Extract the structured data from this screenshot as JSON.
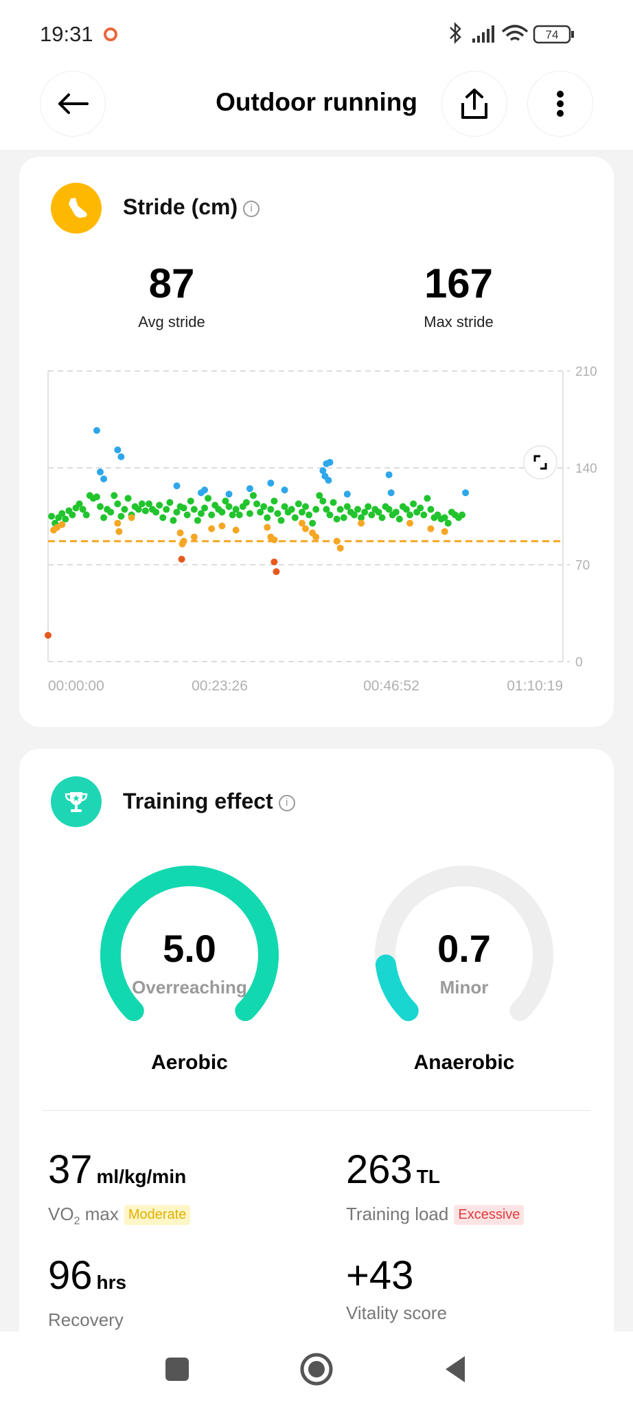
{
  "status_bar": {
    "time": "19:31",
    "battery": "74"
  },
  "header": {
    "title": "Outdoor running"
  },
  "stride": {
    "title": "Stride (cm)",
    "avg_value": "87",
    "avg_label": "Avg stride",
    "max_value": "167",
    "max_label": "Max stride"
  },
  "chart_data": {
    "type": "scatter",
    "title": "",
    "xlabel": "",
    "ylabel": "",
    "ylim": [
      0,
      210
    ],
    "yticks": [
      "210",
      "140",
      "70",
      "0"
    ],
    "xticks": [
      "00:00:00",
      "00:23:26",
      "00:46:52",
      "01:10:19"
    ],
    "x_range_min": [
      0,
      74
    ],
    "avg_line": 87,
    "grid": true,
    "colors": {
      "blue": "#2ea6ea",
      "green": "#22c42e",
      "orange": "#f5a623",
      "red": "#e45a1e",
      "avg_line": "#f5a623"
    },
    "series": [
      {
        "color": "blue",
        "points": [
          [
            7,
            167
          ],
          [
            7.5,
            137
          ],
          [
            8,
            132
          ],
          [
            10,
            153
          ],
          [
            10.5,
            148
          ],
          [
            18.5,
            127
          ],
          [
            22,
            122
          ],
          [
            22.5,
            124
          ],
          [
            26,
            121
          ],
          [
            29,
            125
          ],
          [
            32,
            129
          ],
          [
            34,
            124
          ],
          [
            39.5,
            138
          ],
          [
            40,
            143
          ],
          [
            40.5,
            144
          ],
          [
            39.8,
            134
          ],
          [
            40.3,
            131
          ],
          [
            43,
            121
          ],
          [
            49,
            135
          ],
          [
            49.3,
            122
          ],
          [
            60,
            122
          ]
        ]
      },
      {
        "color": "green",
        "points": [
          [
            0.5,
            105
          ],
          [
            1,
            100
          ],
          [
            1.5,
            104
          ],
          [
            2,
            107
          ],
          [
            2.5,
            103
          ],
          [
            3,
            109
          ],
          [
            3.5,
            106
          ],
          [
            4,
            111
          ],
          [
            4.5,
            114
          ],
          [
            5,
            110
          ],
          [
            5.5,
            106
          ],
          [
            6,
            120
          ],
          [
            6.5,
            118
          ],
          [
            7,
            119
          ],
          [
            7.5,
            112
          ],
          [
            8,
            104
          ],
          [
            8.5,
            110
          ],
          [
            9,
            108
          ],
          [
            9.5,
            120
          ],
          [
            10,
            114
          ],
          [
            10.5,
            105
          ],
          [
            11,
            110
          ],
          [
            11.5,
            118
          ],
          [
            12,
            106
          ],
          [
            12.5,
            112
          ],
          [
            13,
            110
          ],
          [
            13.5,
            114
          ],
          [
            14,
            109
          ],
          [
            14.5,
            114
          ],
          [
            15,
            110
          ],
          [
            15.5,
            108
          ],
          [
            16,
            113
          ],
          [
            16.5,
            104
          ],
          [
            17,
            110
          ],
          [
            17.5,
            115
          ],
          [
            18,
            102
          ],
          [
            18.5,
            108
          ],
          [
            19,
            112
          ],
          [
            19.5,
            111
          ],
          [
            20,
            106
          ],
          [
            20.5,
            116
          ],
          [
            21,
            110
          ],
          [
            21.5,
            102
          ],
          [
            22,
            107
          ],
          [
            22.5,
            111
          ],
          [
            23,
            118
          ],
          [
            23.5,
            106
          ],
          [
            24,
            113
          ],
          [
            24.5,
            110
          ],
          [
            25,
            108
          ],
          [
            25.5,
            116
          ],
          [
            26,
            112
          ],
          [
            26.5,
            106
          ],
          [
            27,
            110
          ],
          [
            27.5,
            106
          ],
          [
            28,
            112
          ],
          [
            28.5,
            115
          ],
          [
            29,
            107
          ],
          [
            29.5,
            120
          ],
          [
            30,
            114
          ],
          [
            30.5,
            108
          ],
          [
            31,
            112
          ],
          [
            31.5,
            104
          ],
          [
            32,
            110
          ],
          [
            32.5,
            116
          ],
          [
            33,
            107
          ],
          [
            33.5,
            102
          ],
          [
            34,
            112
          ],
          [
            34.5,
            108
          ],
          [
            35,
            110
          ],
          [
            35.5,
            104
          ],
          [
            36,
            114
          ],
          [
            36.5,
            108
          ],
          [
            37,
            112
          ],
          [
            37.5,
            106
          ],
          [
            38,
            100
          ],
          [
            38.5,
            110
          ],
          [
            39,
            120
          ],
          [
            39.5,
            116
          ],
          [
            40,
            110
          ],
          [
            40.5,
            106
          ],
          [
            41,
            115
          ],
          [
            41.5,
            103
          ],
          [
            42,
            110
          ],
          [
            42.5,
            104
          ],
          [
            43,
            112
          ],
          [
            43.5,
            108
          ],
          [
            44,
            106
          ],
          [
            44.5,
            110
          ],
          [
            45,
            104
          ],
          [
            45.5,
            108
          ],
          [
            46,
            112
          ],
          [
            46.5,
            106
          ],
          [
            47,
            110
          ],
          [
            47.5,
            108
          ],
          [
            48,
            104
          ],
          [
            48.5,
            112
          ],
          [
            49,
            110
          ],
          [
            49.5,
            106
          ],
          [
            50,
            108
          ],
          [
            50.5,
            103
          ],
          [
            51,
            112
          ],
          [
            51.5,
            110
          ],
          [
            52,
            106
          ],
          [
            52.5,
            114
          ],
          [
            53,
            108
          ],
          [
            53.5,
            111
          ],
          [
            54,
            106
          ],
          [
            54.5,
            118
          ],
          [
            55,
            110
          ],
          [
            55.5,
            104
          ],
          [
            56,
            106
          ],
          [
            56.5,
            103
          ],
          [
            57,
            104
          ],
          [
            57.5,
            100
          ],
          [
            58,
            108
          ],
          [
            58.5,
            106
          ],
          [
            59,
            104
          ],
          [
            59.5,
            106
          ]
        ]
      },
      {
        "color": "orange",
        "points": [
          [
            0.8,
            95
          ],
          [
            1.3,
            97
          ],
          [
            2,
            99
          ],
          [
            10,
            100
          ],
          [
            10.2,
            94
          ],
          [
            12,
            104
          ],
          [
            19,
            93
          ],
          [
            19.5,
            87
          ],
          [
            19.3,
            85
          ],
          [
            21,
            90
          ],
          [
            23.5,
            96
          ],
          [
            25,
            98
          ],
          [
            27,
            95
          ],
          [
            31.5,
            97
          ],
          [
            32,
            90
          ],
          [
            32.5,
            88
          ],
          [
            36.5,
            100
          ],
          [
            37,
            96
          ],
          [
            38,
            93
          ],
          [
            38.5,
            90
          ],
          [
            41.5,
            87
          ],
          [
            42,
            82
          ],
          [
            45,
            100
          ],
          [
            52,
            100
          ],
          [
            55,
            96
          ],
          [
            57,
            94
          ]
        ]
      },
      {
        "color": "red",
        "points": [
          [
            0,
            19
          ],
          [
            19.2,
            74
          ],
          [
            32.5,
            72
          ],
          [
            32.8,
            65
          ]
        ]
      }
    ]
  },
  "training": {
    "title": "Training effect",
    "aerobic_value": "5.0",
    "aerobic_status": "Overreaching",
    "aerobic_label": "Aerobic",
    "aerobic_fraction": 1.0,
    "anaerobic_value": "0.7",
    "anaerobic_status": "Minor",
    "anaerobic_label": "Anaerobic",
    "anaerobic_fraction": 0.14,
    "vo2_value": "37",
    "vo2_unit": "ml/kg/min",
    "vo2_label_main": "VO",
    "vo2_label_sub": "2",
    "vo2_label_end": " max",
    "vo2_badge": "Moderate",
    "load_value": "263",
    "load_unit": "TL",
    "load_label": "Training load",
    "load_badge": "Excessive",
    "recovery_value": "96",
    "recovery_unit": "hrs",
    "recovery_label": "Recovery",
    "vitality_value": "+43",
    "vitality_label": "Vitality score"
  },
  "colors": {
    "aerobic": "#12d8b0",
    "anaerobic": "#19d6d0",
    "track": "#eeeeee"
  }
}
